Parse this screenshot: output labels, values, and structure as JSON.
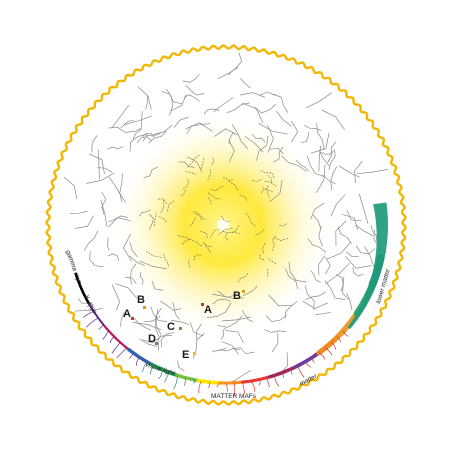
{
  "diagram": {
    "outer_ring_color": "#f2b705",
    "center_glow_color": "#ffe81a",
    "points": [
      {
        "id": "A",
        "label": "A",
        "dot_color": "#c0392b"
      },
      {
        "id": "B",
        "label": "B",
        "dot_color": "#d4a017"
      },
      {
        "id": "C",
        "label": "C",
        "dot_color": "#9c7a2e"
      },
      {
        "id": "D",
        "label": "D",
        "dot_color": "#5a7fa6"
      },
      {
        "id": "E",
        "label": "E",
        "dot_color": "#e8c21c"
      },
      {
        "id": "A2",
        "label": "A",
        "dot_color": "#c0392b"
      },
      {
        "id": "B2",
        "label": "B",
        "dot_color": "#d4a017"
      }
    ],
    "spectrum_labels": {
      "gamma": "gamma rays",
      "xrays": "X- rays",
      "visual": "visual light",
      "mafs": "MATTER MAFs",
      "matter": "matter",
      "lower_matter": "lower matter"
    }
  }
}
